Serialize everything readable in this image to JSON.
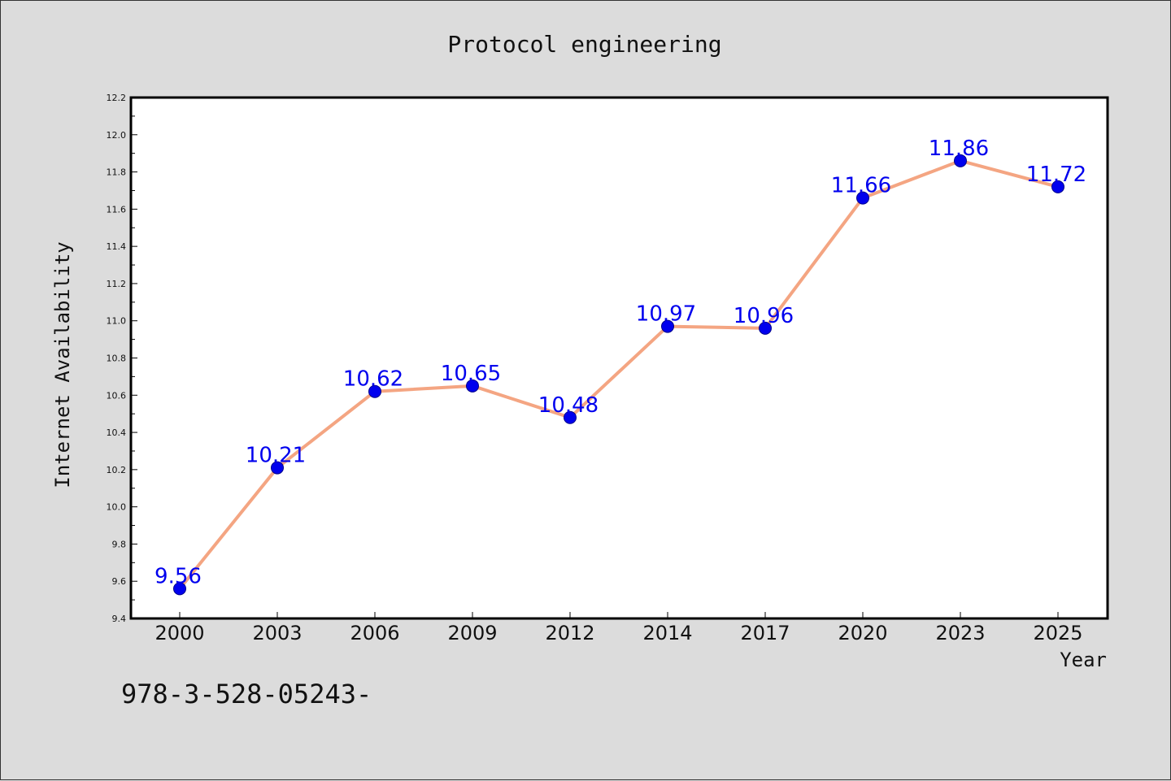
{
  "chart_data": {
    "type": "line",
    "title": "Protocol engineering",
    "xlabel": "Year",
    "ylabel": "Internet Availability",
    "categories": [
      "2000",
      "2003",
      "2006",
      "2009",
      "2012",
      "2014",
      "2017",
      "2020",
      "2023",
      "2025"
    ],
    "series": [
      {
        "values": [
          9.56,
          10.21,
          10.62,
          10.65,
          10.48,
          10.97,
          10.96,
          11.66,
          11.86,
          11.72
        ],
        "line_color": "#f4a582",
        "marker_color": "#0000ee",
        "label_color": "#0000ee"
      }
    ],
    "data_labels": [
      "9.56",
      "10.21",
      "10.62",
      "10.65",
      "10.48",
      "10.97",
      "10.96",
      "11.66",
      "11.86",
      "11.72"
    ],
    "ylim": [
      9.4,
      12.2
    ],
    "yticks": [
      "9.4",
      "9.6",
      "9.8",
      "10.0",
      "10.2",
      "10.4",
      "10.6",
      "10.8",
      "11.0",
      "11.2",
      "11.4",
      "11.6",
      "11.8",
      "12.0",
      "12.2"
    ],
    "grid": false,
    "legend": "none"
  },
  "footer_text": "978-3-528-05243-",
  "colors": {
    "background": "#dcdcdc",
    "plot_background": "#ffffff",
    "axis": "#000000"
  }
}
